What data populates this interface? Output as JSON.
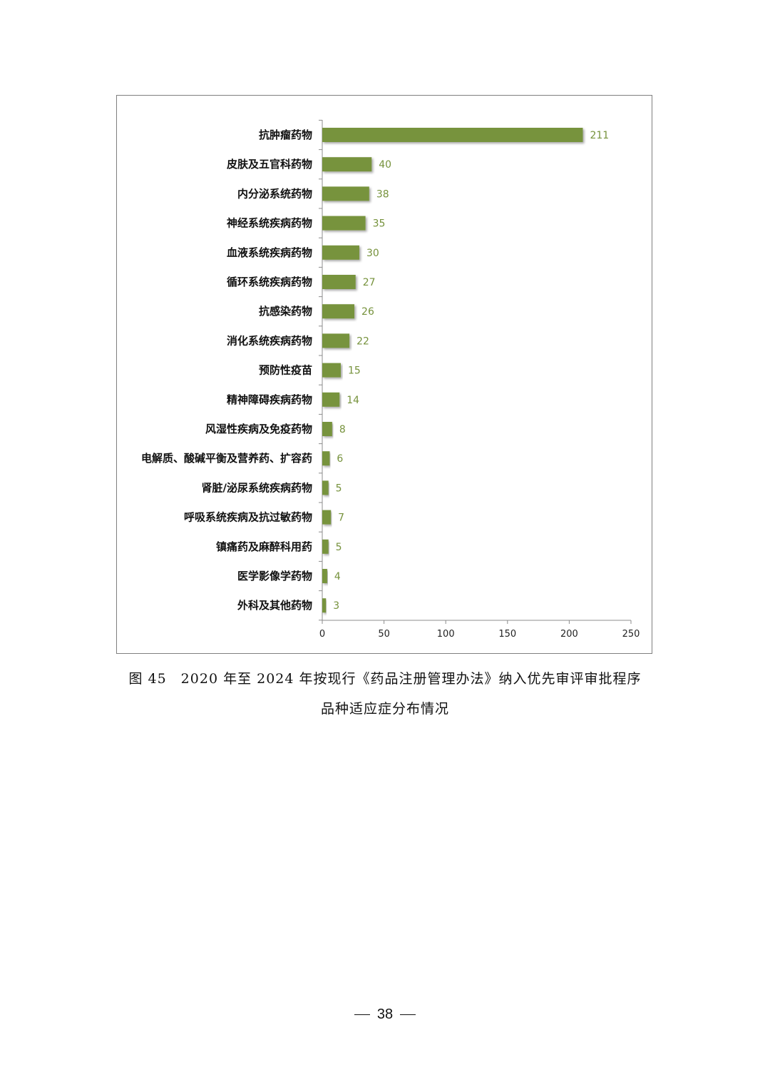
{
  "chart_data": {
    "type": "bar",
    "orientation": "horizontal",
    "categories": [
      "抗肿瘤药物",
      "皮肤及五官科药物",
      "内分泌系统药物",
      "神经系统疾病药物",
      "血液系统疾病药物",
      "循环系统疾病药物",
      "抗感染药物",
      "消化系统疾病药物",
      "预防性疫苗",
      "精神障碍疾病药物",
      "风湿性疾病及免疫药物",
      "电解质、酸碱平衡及营养药、扩容药",
      "肾脏/泌尿系统疾病药物",
      "呼吸系统疾病及抗过敏药物",
      "镇痛药及麻醉科用药",
      "医学影像学药物",
      "外科及其他药物"
    ],
    "values": [
      211,
      40,
      38,
      35,
      30,
      27,
      26,
      22,
      15,
      14,
      8,
      6,
      5,
      7,
      5,
      4,
      3
    ],
    "value_labels": [
      "211",
      "40",
      "38",
      "35",
      "30",
      "27",
      "26",
      "22",
      "15",
      "14",
      "8",
      "6",
      "5",
      "7",
      "5",
      "4",
      "3"
    ],
    "xlim": [
      0,
      250
    ],
    "xticks": [
      "0",
      "50",
      "100",
      "150",
      "200",
      "250"
    ],
    "xtick_values": [
      0,
      50,
      100,
      150,
      200,
      250
    ],
    "grid": false,
    "legend": "none",
    "bar_color": "#77933c",
    "label_color": "#76923c"
  },
  "caption": {
    "line1": "图 45　2020 年至 2024 年按现行《药品注册管理办法》纳入优先审评审批程序",
    "line2": "品种适应症分布情况"
  },
  "page_number": "38"
}
